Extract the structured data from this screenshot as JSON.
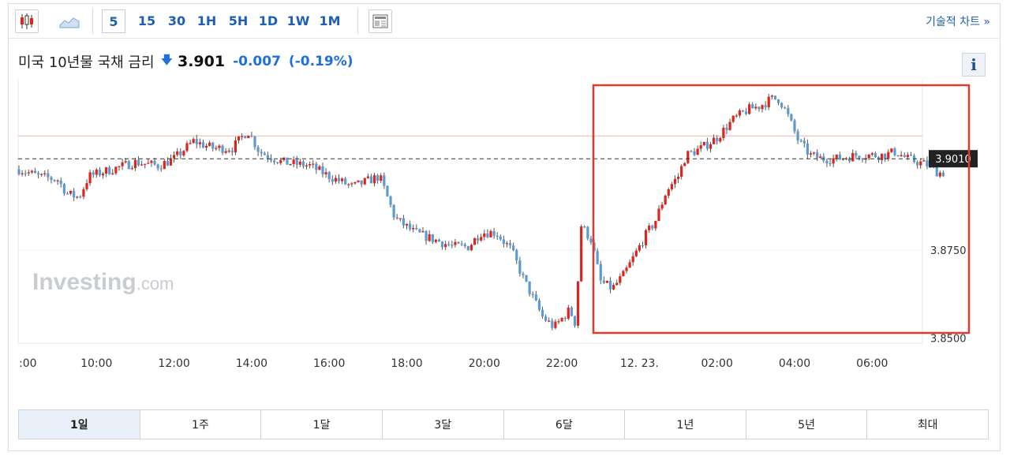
{
  "toolbar": {
    "timeframes": [
      "5",
      "15",
      "30",
      "1H",
      "5H",
      "1D",
      "1W",
      "1M"
    ],
    "active_timeframe": "5",
    "technical_chart_label": "기술적 차트 »"
  },
  "header": {
    "instrument": "미국 10년물 국채 금리",
    "last": "3.901",
    "change": "-0.007",
    "change_pct": "(-0.19%)",
    "info_label": "i"
  },
  "colors": {
    "up": "#e0241b",
    "down": "#5b9bd5",
    "highlight_box": "#e03a2f",
    "accent": "#1f5fb3"
  },
  "chart_data": {
    "type": "candlestick",
    "interval": "5 min",
    "x_tick_labels": [
      ":00",
      "10:00",
      "12:00",
      "14:00",
      "16:00",
      "18:00",
      "20:00",
      "22:00",
      "12. 23.",
      "02:00",
      "04:00",
      "06:00"
    ],
    "y_tick_labels": [
      "3.8500",
      "3.8750"
    ],
    "ylim": [
      3.8485,
      3.9235
    ],
    "current_value_label": "3.9010",
    "current_value": 3.901,
    "reference_line": 3.9075,
    "watermark": "Investing.com",
    "close_keypoints": [
      [
        8.0,
        3.898
      ],
      [
        8.5,
        3.896
      ],
      [
        9.0,
        3.895
      ],
      [
        9.25,
        3.891
      ],
      [
        9.55,
        3.89
      ],
      [
        9.8,
        3.896
      ],
      [
        10.4,
        3.898
      ],
      [
        11.0,
        3.9
      ],
      [
        11.6,
        3.899
      ],
      [
        12.0,
        3.901
      ],
      [
        12.5,
        3.906
      ],
      [
        13.0,
        3.904
      ],
      [
        13.5,
        3.904
      ],
      [
        13.9,
        3.909
      ],
      [
        14.2,
        3.903
      ],
      [
        14.8,
        3.9
      ],
      [
        15.5,
        3.899
      ],
      [
        16.0,
        3.896
      ],
      [
        16.6,
        3.893
      ],
      [
        17.3,
        3.896
      ],
      [
        17.7,
        3.884
      ],
      [
        18.2,
        3.88
      ],
      [
        18.7,
        3.878
      ],
      [
        19.2,
        3.876
      ],
      [
        19.6,
        3.876
      ],
      [
        19.9,
        3.88
      ],
      [
        20.3,
        3.88
      ],
      [
        20.7,
        3.875
      ],
      [
        21.0,
        3.867
      ],
      [
        21.5,
        3.856
      ],
      [
        21.8,
        3.853
      ],
      [
        22.2,
        3.858
      ],
      [
        22.35,
        3.854
      ],
      [
        22.5,
        3.882
      ],
      [
        22.75,
        3.878
      ],
      [
        23.0,
        3.866
      ],
      [
        23.3,
        3.864
      ],
      [
        23.6,
        3.868
      ],
      [
        23.9,
        3.874
      ],
      [
        24.2,
        3.88
      ],
      [
        24.4,
        3.883
      ],
      [
        24.7,
        3.892
      ],
      [
        25.0,
        3.896
      ],
      [
        25.2,
        3.902
      ],
      [
        25.6,
        3.904
      ],
      [
        26.0,
        3.907
      ],
      [
        26.4,
        3.912
      ],
      [
        26.8,
        3.915
      ],
      [
        27.1,
        3.916
      ],
      [
        27.4,
        3.918
      ],
      [
        27.6,
        3.918
      ],
      [
        27.8,
        3.914
      ],
      [
        28.1,
        3.906
      ],
      [
        28.4,
        3.902
      ],
      [
        28.7,
        3.901
      ],
      [
        29.1,
        3.901
      ],
      [
        29.6,
        3.902
      ],
      [
        30.0,
        3.902
      ],
      [
        30.3,
        3.902
      ],
      [
        30.6,
        3.903
      ],
      [
        30.9,
        3.901
      ],
      [
        31.2,
        3.9
      ],
      [
        31.5,
        3.899
      ],
      [
        31.7,
        3.897
      ]
    ]
  },
  "periods": [
    "1일",
    "1주",
    "1달",
    "3달",
    "6달",
    "1년",
    "5년",
    "최대"
  ],
  "active_period": "1일"
}
